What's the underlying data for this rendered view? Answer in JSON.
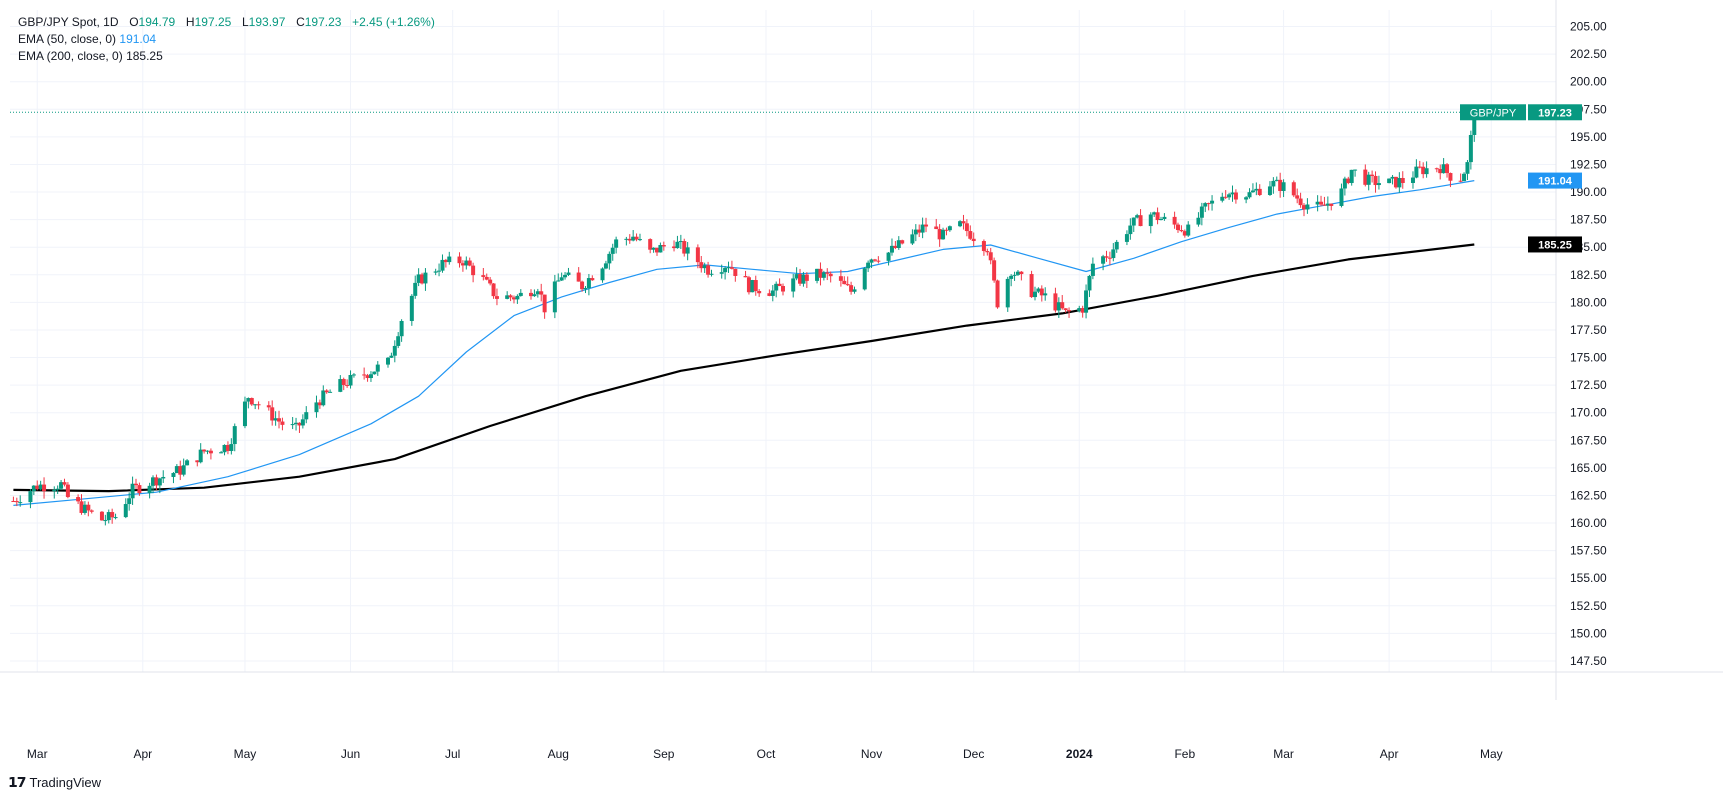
{
  "header": {
    "symbol": "GBP/JPY Spot, 1D",
    "ohlc": [
      {
        "label": "O",
        "value": "194.79"
      },
      {
        "label": "H",
        "value": "197.25"
      },
      {
        "label": "L",
        "value": "193.97"
      },
      {
        "label": "C",
        "value": "197.23"
      }
    ],
    "change": "+2.45 (+1.26%)",
    "ema50_label": "EMA (50, close, 0)",
    "ema50_value": "191.04",
    "ema200_label": "EMA (200, close, 0)",
    "ema200_value": "185.25"
  },
  "price_tags": [
    {
      "name": "GBP/JPY",
      "text": "197.23",
      "price": 197.23,
      "color": "#089981"
    },
    {
      "text": "191.04",
      "price": 191.04,
      "color": "#2196f3"
    },
    {
      "text": "185.25",
      "price": 185.25,
      "color": "#000000"
    }
  ],
  "brand": {
    "name": "TradingView",
    "logo_icon": "tradingview-logo"
  },
  "colors": {
    "up": "#089981",
    "down": "#f23645",
    "ema50": "#2196f3",
    "ema200": "#000000",
    "grid": "#f0f3fa"
  },
  "chart_data": {
    "type": "candlestick",
    "title": "GBP/JPY Spot, 1D",
    "ylim": [
      146.5,
      206.5
    ],
    "y_ticks": [
      147.5,
      150.0,
      152.5,
      155.0,
      157.5,
      160.0,
      162.5,
      165.0,
      167.5,
      170.0,
      172.5,
      175.0,
      177.5,
      180.0,
      182.5,
      185.0,
      187.5,
      190.0,
      192.5,
      195.0,
      197.5,
      200.0,
      202.5,
      205.0
    ],
    "y_tick_labels": [
      "147.50",
      "150.00",
      "152.50",
      "155.00",
      "157.50",
      "160.00",
      "162.50",
      "165.00",
      "167.50",
      "170.00",
      "172.50",
      "175.00",
      "177.50",
      "180.00",
      "182.50",
      "185.00",
      "187.50",
      "190.00",
      "192.50",
      "195.00",
      "197.50",
      "200.00",
      "202.50",
      "205.00"
    ],
    "x_labels": [
      {
        "text": "Mar",
        "date": "2023-03-01"
      },
      {
        "text": "Apr",
        "date": "2023-04-01"
      },
      {
        "text": "May",
        "date": "2023-05-01"
      },
      {
        "text": "Jun",
        "date": "2023-06-01"
      },
      {
        "text": "Jul",
        "date": "2023-07-01"
      },
      {
        "text": "Aug",
        "date": "2023-08-01"
      },
      {
        "text": "Sep",
        "date": "2023-09-01"
      },
      {
        "text": "Oct",
        "date": "2023-10-01"
      },
      {
        "text": "Nov",
        "date": "2023-11-01"
      },
      {
        "text": "Dec",
        "date": "2023-12-01"
      },
      {
        "text": "2024",
        "date": "2024-01-01",
        "bold": true
      },
      {
        "text": "Feb",
        "date": "2024-02-01"
      },
      {
        "text": "Mar",
        "date": "2024-03-01"
      },
      {
        "text": "Apr",
        "date": "2024-04-01"
      },
      {
        "text": "May",
        "date": "2024-05-01"
      }
    ],
    "date_range": [
      "2023-02-21",
      "2024-05-20"
    ],
    "close_series": [
      [
        "2023-02-22",
        162.0
      ],
      [
        "2023-03-01",
        163.4
      ],
      [
        "2023-03-08",
        163.5
      ],
      [
        "2023-03-10",
        162.3
      ],
      [
        "2023-03-15",
        161.2
      ],
      [
        "2023-03-20",
        160.3
      ],
      [
        "2023-03-24",
        160.6
      ],
      [
        "2023-03-29",
        163.0
      ],
      [
        "2023-04-05",
        164.0
      ],
      [
        "2023-04-12",
        164.8
      ],
      [
        "2023-04-19",
        166.5
      ],
      [
        "2023-04-26",
        167.0
      ],
      [
        "2023-05-02",
        171.5
      ],
      [
        "2023-05-08",
        170.0
      ],
      [
        "2023-05-12",
        169.0
      ],
      [
        "2023-05-16",
        168.5
      ],
      [
        "2023-05-22",
        171.0
      ],
      [
        "2023-05-29",
        172.5
      ],
      [
        "2023-06-05",
        173.5
      ],
      [
        "2023-06-12",
        174.5
      ],
      [
        "2023-06-16",
        178.5
      ],
      [
        "2023-06-21",
        182.0
      ],
      [
        "2023-06-28",
        183.5
      ],
      [
        "2023-07-04",
        183.8
      ],
      [
        "2023-07-10",
        182.0
      ],
      [
        "2023-07-14",
        180.5
      ],
      [
        "2023-07-20",
        180.5
      ],
      [
        "2023-07-26",
        181.5
      ],
      [
        "2023-07-28",
        179.5
      ],
      [
        "2023-08-02",
        182.5
      ],
      [
        "2023-08-08",
        181.5
      ],
      [
        "2023-08-14",
        183.5
      ],
      [
        "2023-08-18",
        185.5
      ],
      [
        "2023-08-23",
        186.0
      ],
      [
        "2023-08-28",
        184.5
      ],
      [
        "2023-09-04",
        185.5
      ],
      [
        "2023-09-08",
        184.5
      ],
      [
        "2023-09-14",
        183.0
      ],
      [
        "2023-09-20",
        183.5
      ],
      [
        "2023-09-26",
        181.5
      ],
      [
        "2023-10-03",
        181.0
      ],
      [
        "2023-10-10",
        182.0
      ],
      [
        "2023-10-16",
        182.5
      ],
      [
        "2023-10-20",
        182.3
      ],
      [
        "2023-10-26",
        181.0
      ],
      [
        "2023-10-31",
        184.0
      ],
      [
        "2023-11-06",
        184.5
      ],
      [
        "2023-11-13",
        186.0
      ],
      [
        "2023-11-17",
        187.0
      ],
      [
        "2023-11-22",
        186.0
      ],
      [
        "2023-11-27",
        187.0
      ],
      [
        "2023-12-01",
        186.0
      ],
      [
        "2023-12-05",
        185.0
      ],
      [
        "2023-12-08",
        180.0
      ],
      [
        "2023-12-12",
        183.0
      ],
      [
        "2023-12-18",
        181.0
      ],
      [
        "2023-12-22",
        180.5
      ],
      [
        "2023-12-28",
        179.0
      ],
      [
        "2024-01-02",
        179.5
      ],
      [
        "2024-01-05",
        183.5
      ],
      [
        "2024-01-10",
        184.5
      ],
      [
        "2024-01-16",
        187.0
      ],
      [
        "2024-01-22",
        188.0
      ],
      [
        "2024-01-29",
        187.0
      ],
      [
        "2024-02-02",
        186.5
      ],
      [
        "2024-02-07",
        188.5
      ],
      [
        "2024-02-13",
        190.0
      ],
      [
        "2024-02-20",
        189.8
      ],
      [
        "2024-02-26",
        190.8
      ],
      [
        "2024-03-01",
        190.5
      ],
      [
        "2024-03-07",
        189.0
      ],
      [
        "2024-03-12",
        188.5
      ],
      [
        "2024-03-18",
        190.0
      ],
      [
        "2024-03-21",
        192.0
      ],
      [
        "2024-03-26",
        191.0
      ],
      [
        "2024-04-01",
        190.8
      ],
      [
        "2024-04-05",
        191.0
      ],
      [
        "2024-04-10",
        192.0
      ],
      [
        "2024-04-16",
        192.3
      ],
      [
        "2024-04-19",
        191.5
      ],
      [
        "2024-04-22",
        191.3
      ],
      [
        "2024-04-24",
        192.5
      ],
      [
        "2024-04-25",
        194.8
      ],
      [
        "2024-04-26",
        197.23
      ]
    ],
    "ema50_series": [
      [
        "2023-02-22",
        161.6
      ],
      [
        "2023-03-15",
        162.2
      ],
      [
        "2023-04-05",
        162.8
      ],
      [
        "2023-04-26",
        164.2
      ],
      [
        "2023-05-17",
        166.2
      ],
      [
        "2023-06-07",
        169.0
      ],
      [
        "2023-06-21",
        171.5
      ],
      [
        "2023-07-05",
        175.5
      ],
      [
        "2023-07-19",
        178.8
      ],
      [
        "2023-08-02",
        180.5
      ],
      [
        "2023-08-16",
        181.8
      ],
      [
        "2023-08-30",
        183.0
      ],
      [
        "2023-09-13",
        183.4
      ],
      [
        "2023-09-27",
        183.0
      ],
      [
        "2023-10-11",
        182.6
      ],
      [
        "2023-10-25",
        182.8
      ],
      [
        "2023-11-08",
        183.8
      ],
      [
        "2023-11-22",
        184.8
      ],
      [
        "2023-12-06",
        185.2
      ],
      [
        "2023-12-20",
        184.0
      ],
      [
        "2024-01-03",
        182.8
      ],
      [
        "2024-01-17",
        184.0
      ],
      [
        "2024-01-31",
        185.5
      ],
      [
        "2024-02-14",
        186.8
      ],
      [
        "2024-02-28",
        188.0
      ],
      [
        "2024-03-13",
        188.8
      ],
      [
        "2024-03-27",
        189.6
      ],
      [
        "2024-04-10",
        190.2
      ],
      [
        "2024-04-26",
        191.04
      ]
    ],
    "ema200_series": [
      [
        "2023-02-22",
        163.0
      ],
      [
        "2023-03-22",
        162.9
      ],
      [
        "2023-04-19",
        163.2
      ],
      [
        "2023-05-17",
        164.2
      ],
      [
        "2023-06-14",
        165.8
      ],
      [
        "2023-07-12",
        168.8
      ],
      [
        "2023-08-09",
        171.5
      ],
      [
        "2023-09-06",
        173.8
      ],
      [
        "2023-10-04",
        175.2
      ],
      [
        "2023-11-01",
        176.5
      ],
      [
        "2023-11-29",
        177.9
      ],
      [
        "2023-12-27",
        179.0
      ],
      [
        "2024-01-24",
        180.6
      ],
      [
        "2024-02-21",
        182.4
      ],
      [
        "2024-03-20",
        183.9
      ],
      [
        "2024-04-26",
        185.25
      ]
    ]
  }
}
